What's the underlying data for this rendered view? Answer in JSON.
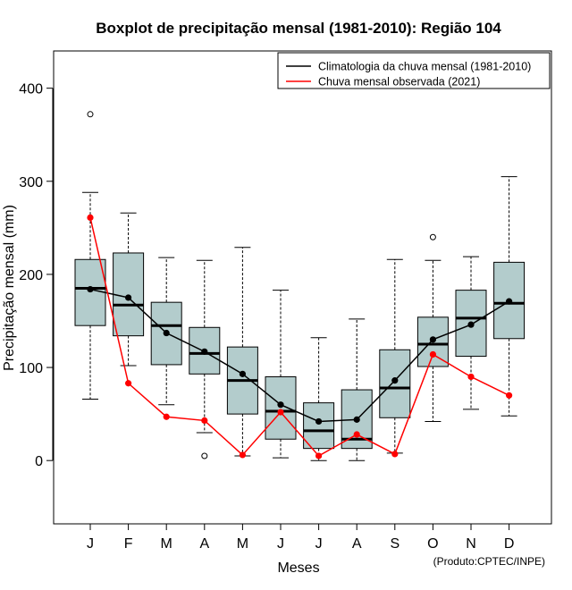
{
  "colors": {
    "box_fill": "#b3cccc",
    "climatology": "#000000",
    "observed": "#ff0000"
  },
  "chart_data": {
    "type": "boxplot",
    "title": "Boxplot de precipitação mensal (1981-2010): Região 104",
    "xlabel": "Meses",
    "ylabel": "Precipitação mensal (mm)",
    "ylim": [
      -68,
      440
    ],
    "yticks": [
      0,
      100,
      200,
      300,
      400
    ],
    "categories": [
      "J",
      "F",
      "M",
      "A",
      "M",
      "J",
      "J",
      "A",
      "S",
      "O",
      "N",
      "D"
    ],
    "boxes": [
      {
        "whisker_low": 66,
        "q1": 145,
        "median": 185,
        "q3": 216,
        "whisker_high": 288,
        "outliers": [
          372
        ]
      },
      {
        "whisker_low": 102,
        "q1": 134,
        "median": 167,
        "q3": 223,
        "whisker_high": 266,
        "outliers": []
      },
      {
        "whisker_low": 60,
        "q1": 103,
        "median": 145,
        "q3": 170,
        "whisker_high": 218,
        "outliers": []
      },
      {
        "whisker_low": 30,
        "q1": 93,
        "median": 115,
        "q3": 143,
        "whisker_high": 215,
        "outliers": [
          5
        ]
      },
      {
        "whisker_low": 5,
        "q1": 50,
        "median": 86,
        "q3": 122,
        "whisker_high": 229,
        "outliers": []
      },
      {
        "whisker_low": 3,
        "q1": 23,
        "median": 53,
        "q3": 90,
        "whisker_high": 183,
        "outliers": []
      },
      {
        "whisker_low": 0,
        "q1": 13,
        "median": 32,
        "q3": 62,
        "whisker_high": 132,
        "outliers": []
      },
      {
        "whisker_low": 0,
        "q1": 13,
        "median": 23,
        "q3": 76,
        "whisker_high": 152,
        "outliers": []
      },
      {
        "whisker_low": 8,
        "q1": 46,
        "median": 78,
        "q3": 119,
        "whisker_high": 216,
        "outliers": []
      },
      {
        "whisker_low": 42,
        "q1": 101,
        "median": 125,
        "q3": 154,
        "whisker_high": 215,
        "outliers": [
          240
        ]
      },
      {
        "whisker_low": 55,
        "q1": 112,
        "median": 153,
        "q3": 183,
        "whisker_high": 219,
        "outliers": []
      },
      {
        "whisker_low": 48,
        "q1": 131,
        "median": 169,
        "q3": 213,
        "whisker_high": 305,
        "outliers": []
      }
    ],
    "series": [
      {
        "name": "Climatologia da chuva mensal (1981-2010)",
        "values": [
          184,
          175,
          137,
          117,
          93,
          60,
          42,
          44,
          86,
          130,
          146,
          171
        ]
      },
      {
        "name": "Chuva mensal observada (2021)",
        "values": [
          261,
          83,
          47,
          43,
          6,
          52,
          5,
          28,
          7,
          114,
          90,
          70
        ]
      }
    ],
    "legend_position": "top-right",
    "credit": "(Produto:CPTEC/INPE)"
  }
}
